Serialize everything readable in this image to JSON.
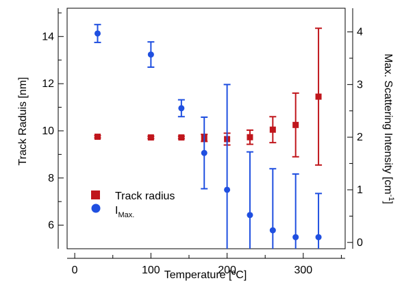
{
  "chart_data": {
    "type": "scatter",
    "title": "",
    "xlabel": "Temperature [ºC]",
    "ylabel": "Track Raduis [nm]",
    "y2label_main": "Max. Scattering Intensity [cm",
    "y2label_sup": "-1",
    "y2label_close": "]",
    "xlim": [
      -10,
      355
    ],
    "ylim": [
      5.0,
      15.2
    ],
    "y2lim": [
      -0.12,
      4.45
    ],
    "x_ticks": [
      0,
      100,
      200,
      300
    ],
    "y_ticks": [
      6,
      8,
      10,
      12,
      14
    ],
    "y2_ticks": [
      0,
      1,
      2,
      3,
      4
    ],
    "grid": false,
    "legend_position": "bottom-left",
    "series": [
      {
        "name": "Track radius",
        "axis": "left",
        "marker": "square",
        "color": "#c0161c",
        "x": [
          30,
          100,
          140,
          170,
          200,
          230,
          260,
          290,
          320
        ],
        "y": [
          9.75,
          9.72,
          9.72,
          9.7,
          9.65,
          9.73,
          10.05,
          10.25,
          11.45
        ],
        "err": [
          0.05,
          0.05,
          0.05,
          0.15,
          0.25,
          0.3,
          0.55,
          1.35,
          2.9
        ]
      },
      {
        "name_main": "I",
        "name_sub": "Max.",
        "axis": "right",
        "marker": "circle",
        "color": "#1f4fe0",
        "x": [
          30,
          100,
          140,
          170,
          200,
          230,
          260,
          290,
          320
        ],
        "y": [
          3.97,
          3.57,
          2.55,
          1.7,
          1.0,
          0.52,
          0.23,
          0.1,
          0.1
        ],
        "err": [
          0.17,
          0.24,
          0.16,
          0.68,
          2.0,
          1.2,
          1.17,
          1.2,
          0.83
        ]
      }
    ],
    "colors": {
      "axis": "#000000",
      "red": "#c0161c",
      "blue": "#1f4fe0"
    }
  }
}
